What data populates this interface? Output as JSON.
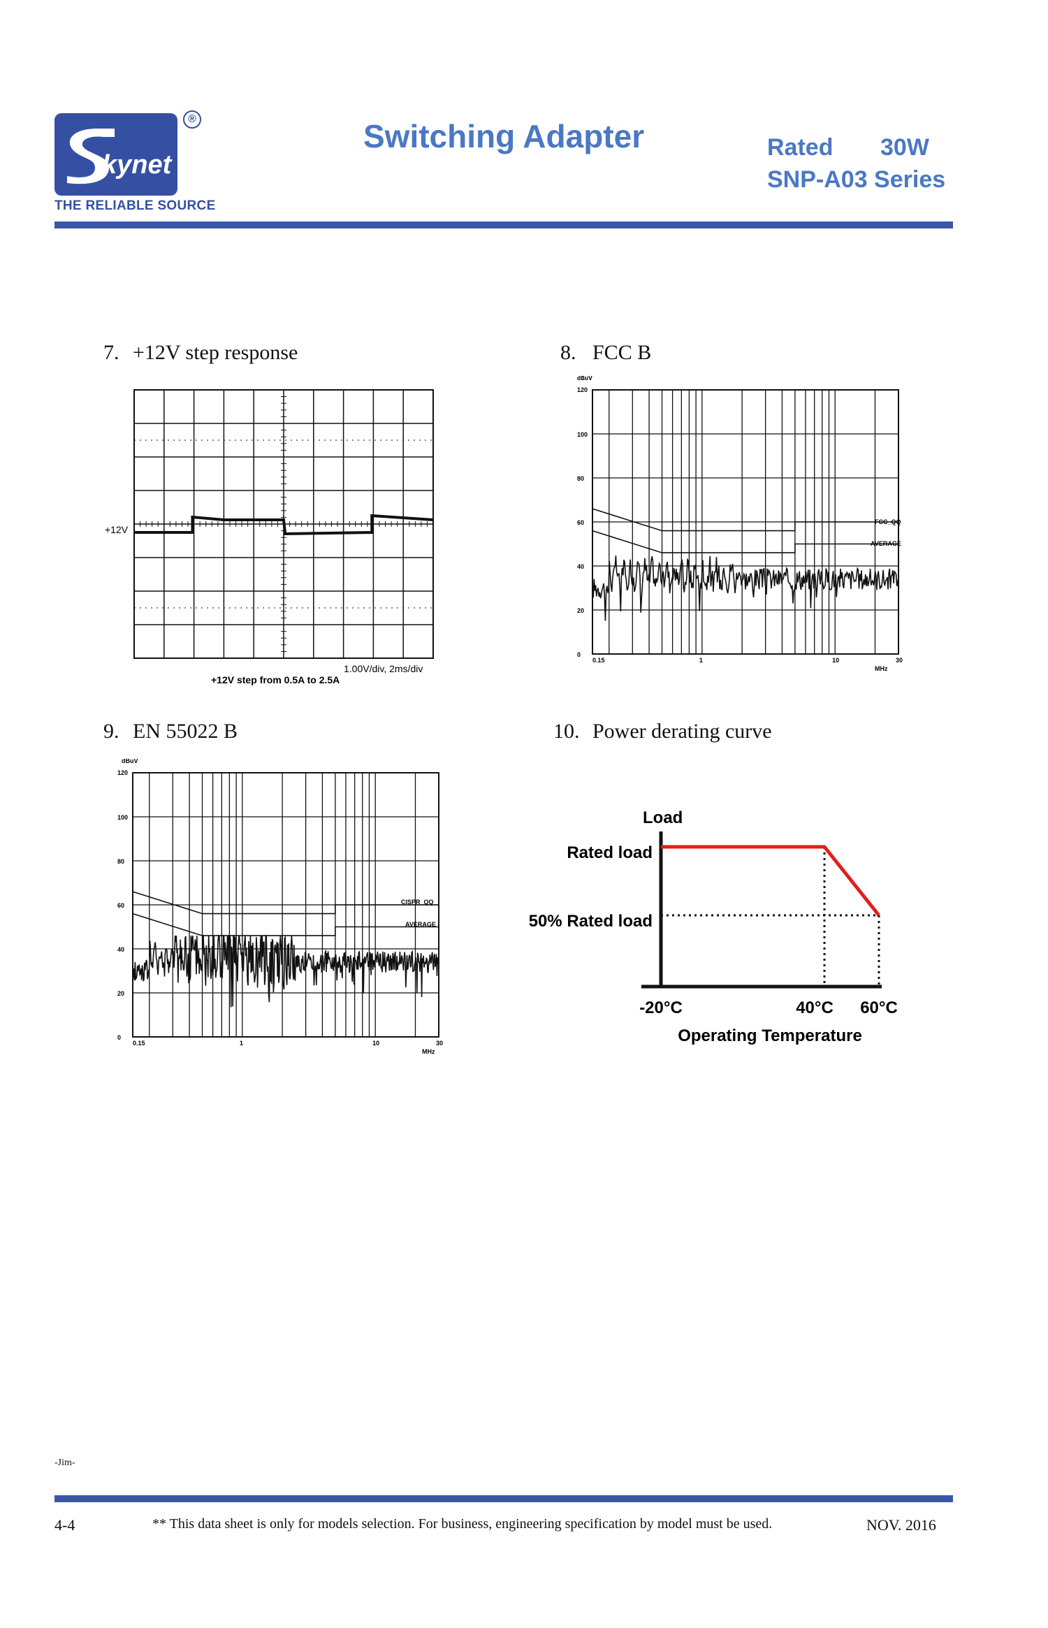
{
  "header": {
    "logo_text": "kynet",
    "logo_reg": "®",
    "tagline": "THE RELIABLE SOURCE",
    "title": "Switching Adapter",
    "rated_label": "Rated",
    "rated_power": "30W",
    "series": "SNP-A03  Series"
  },
  "sections": {
    "s7": {
      "num": "7.",
      "title": "+12V step response"
    },
    "s8": {
      "num": "8.",
      "title": "FCC B"
    },
    "s9": {
      "num": "9.",
      "title": "EN 55022 B"
    },
    "s10": {
      "num": "10.",
      "title": "Power derating curve"
    }
  },
  "scope": {
    "channel_label": "+12V",
    "scale": "1.00V/div, 2ms/div",
    "caption": "+12V step from 0.5A to 2.5A"
  },
  "fcc": {
    "unit": "dBuV",
    "y_ticks": [
      "120",
      "100",
      "80",
      "60",
      "40",
      "20",
      "0"
    ],
    "x_ticks": [
      "0.15",
      "1",
      "10",
      "30"
    ],
    "x_unit": "MHz",
    "limit_qp": "FCC_QQ",
    "limit_avg": "AVERAGE"
  },
  "en": {
    "unit": "dBuV",
    "y_ticks": [
      "120",
      "100",
      "80",
      "60",
      "40",
      "20",
      "0"
    ],
    "x_ticks": [
      "0.15",
      "1",
      "10",
      "30"
    ],
    "x_unit": "MHz",
    "limit_qp": "CISPR_QQ",
    "limit_avg": "AVERAGE"
  },
  "chart_data": [
    {
      "type": "line",
      "title": "Power derating curve",
      "ylabel": "Load",
      "xlabel": "Operating Temperature",
      "x_ticks": [
        "-20°C",
        "40°C",
        "60°C"
      ],
      "y_ticks": [
        "Rated  load",
        "50% Rated  load"
      ],
      "series": [
        {
          "x": [
            -20,
            40,
            60
          ],
          "y": [
            100,
            100,
            50
          ],
          "color": "#e0201b"
        }
      ],
      "xlim": [
        -20,
        60
      ],
      "ylim": [
        0,
        100
      ]
    }
  ],
  "footer": {
    "author": "-Jim-",
    "page": "4-4",
    "note": "** This data sheet is only for models selection.  For business, engineering specification by model must be used.",
    "date": "NOV.  2016"
  },
  "colors": {
    "brand": "#3550a3",
    "title": "#4a78c4",
    "curve": "#e0201b"
  }
}
